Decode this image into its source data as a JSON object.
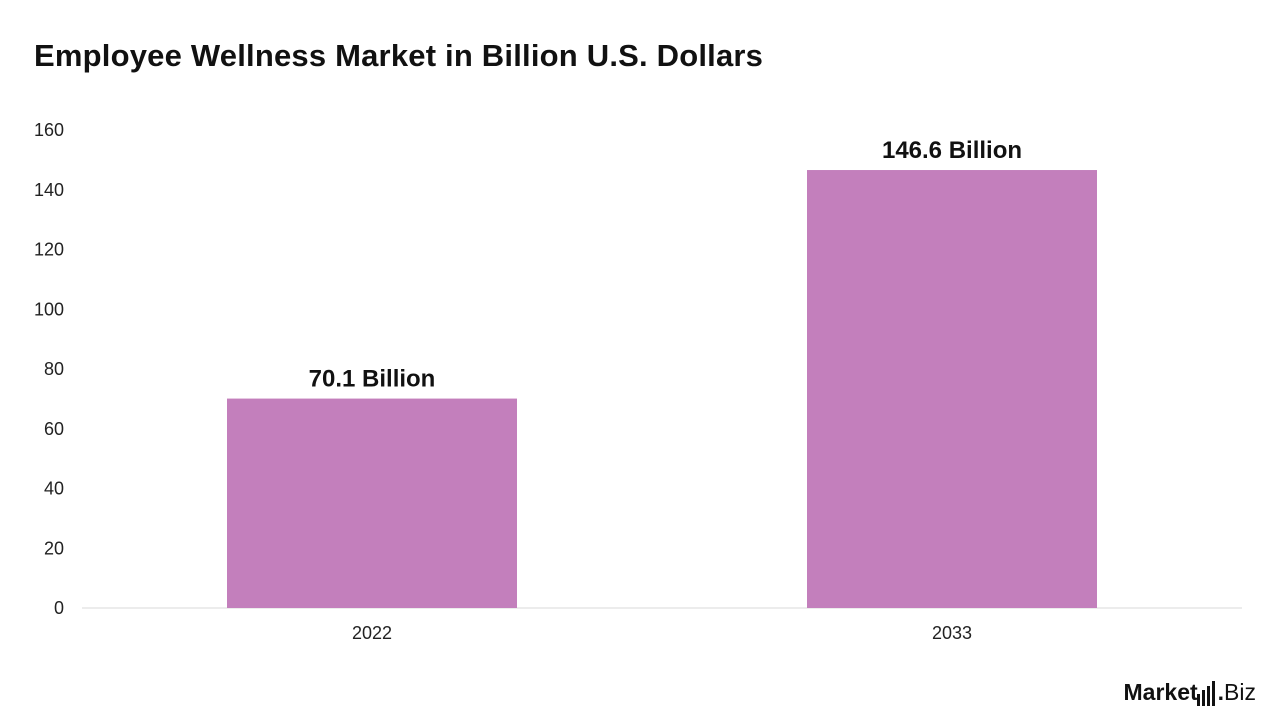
{
  "chart_data": {
    "type": "bar",
    "title": "Employee Wellness Market in Billion U.S. Dollars",
    "categories": [
      "2022",
      "2033"
    ],
    "values": [
      70.1,
      146.6
    ],
    "data_labels": [
      "70.1 Billion",
      "146.6 Billion"
    ],
    "ylim": [
      0,
      160
    ],
    "yticks": [
      0,
      20,
      40,
      60,
      80,
      100,
      120,
      140,
      160
    ],
    "xlabel": "",
    "ylabel": "",
    "grid": false,
    "legend": "none",
    "colors": {
      "bar": "#c37fbc",
      "axis": "#d9d9d9"
    }
  },
  "brand": {
    "name_main": "Market",
    "name_suffix": "Biz",
    "separator": "."
  }
}
